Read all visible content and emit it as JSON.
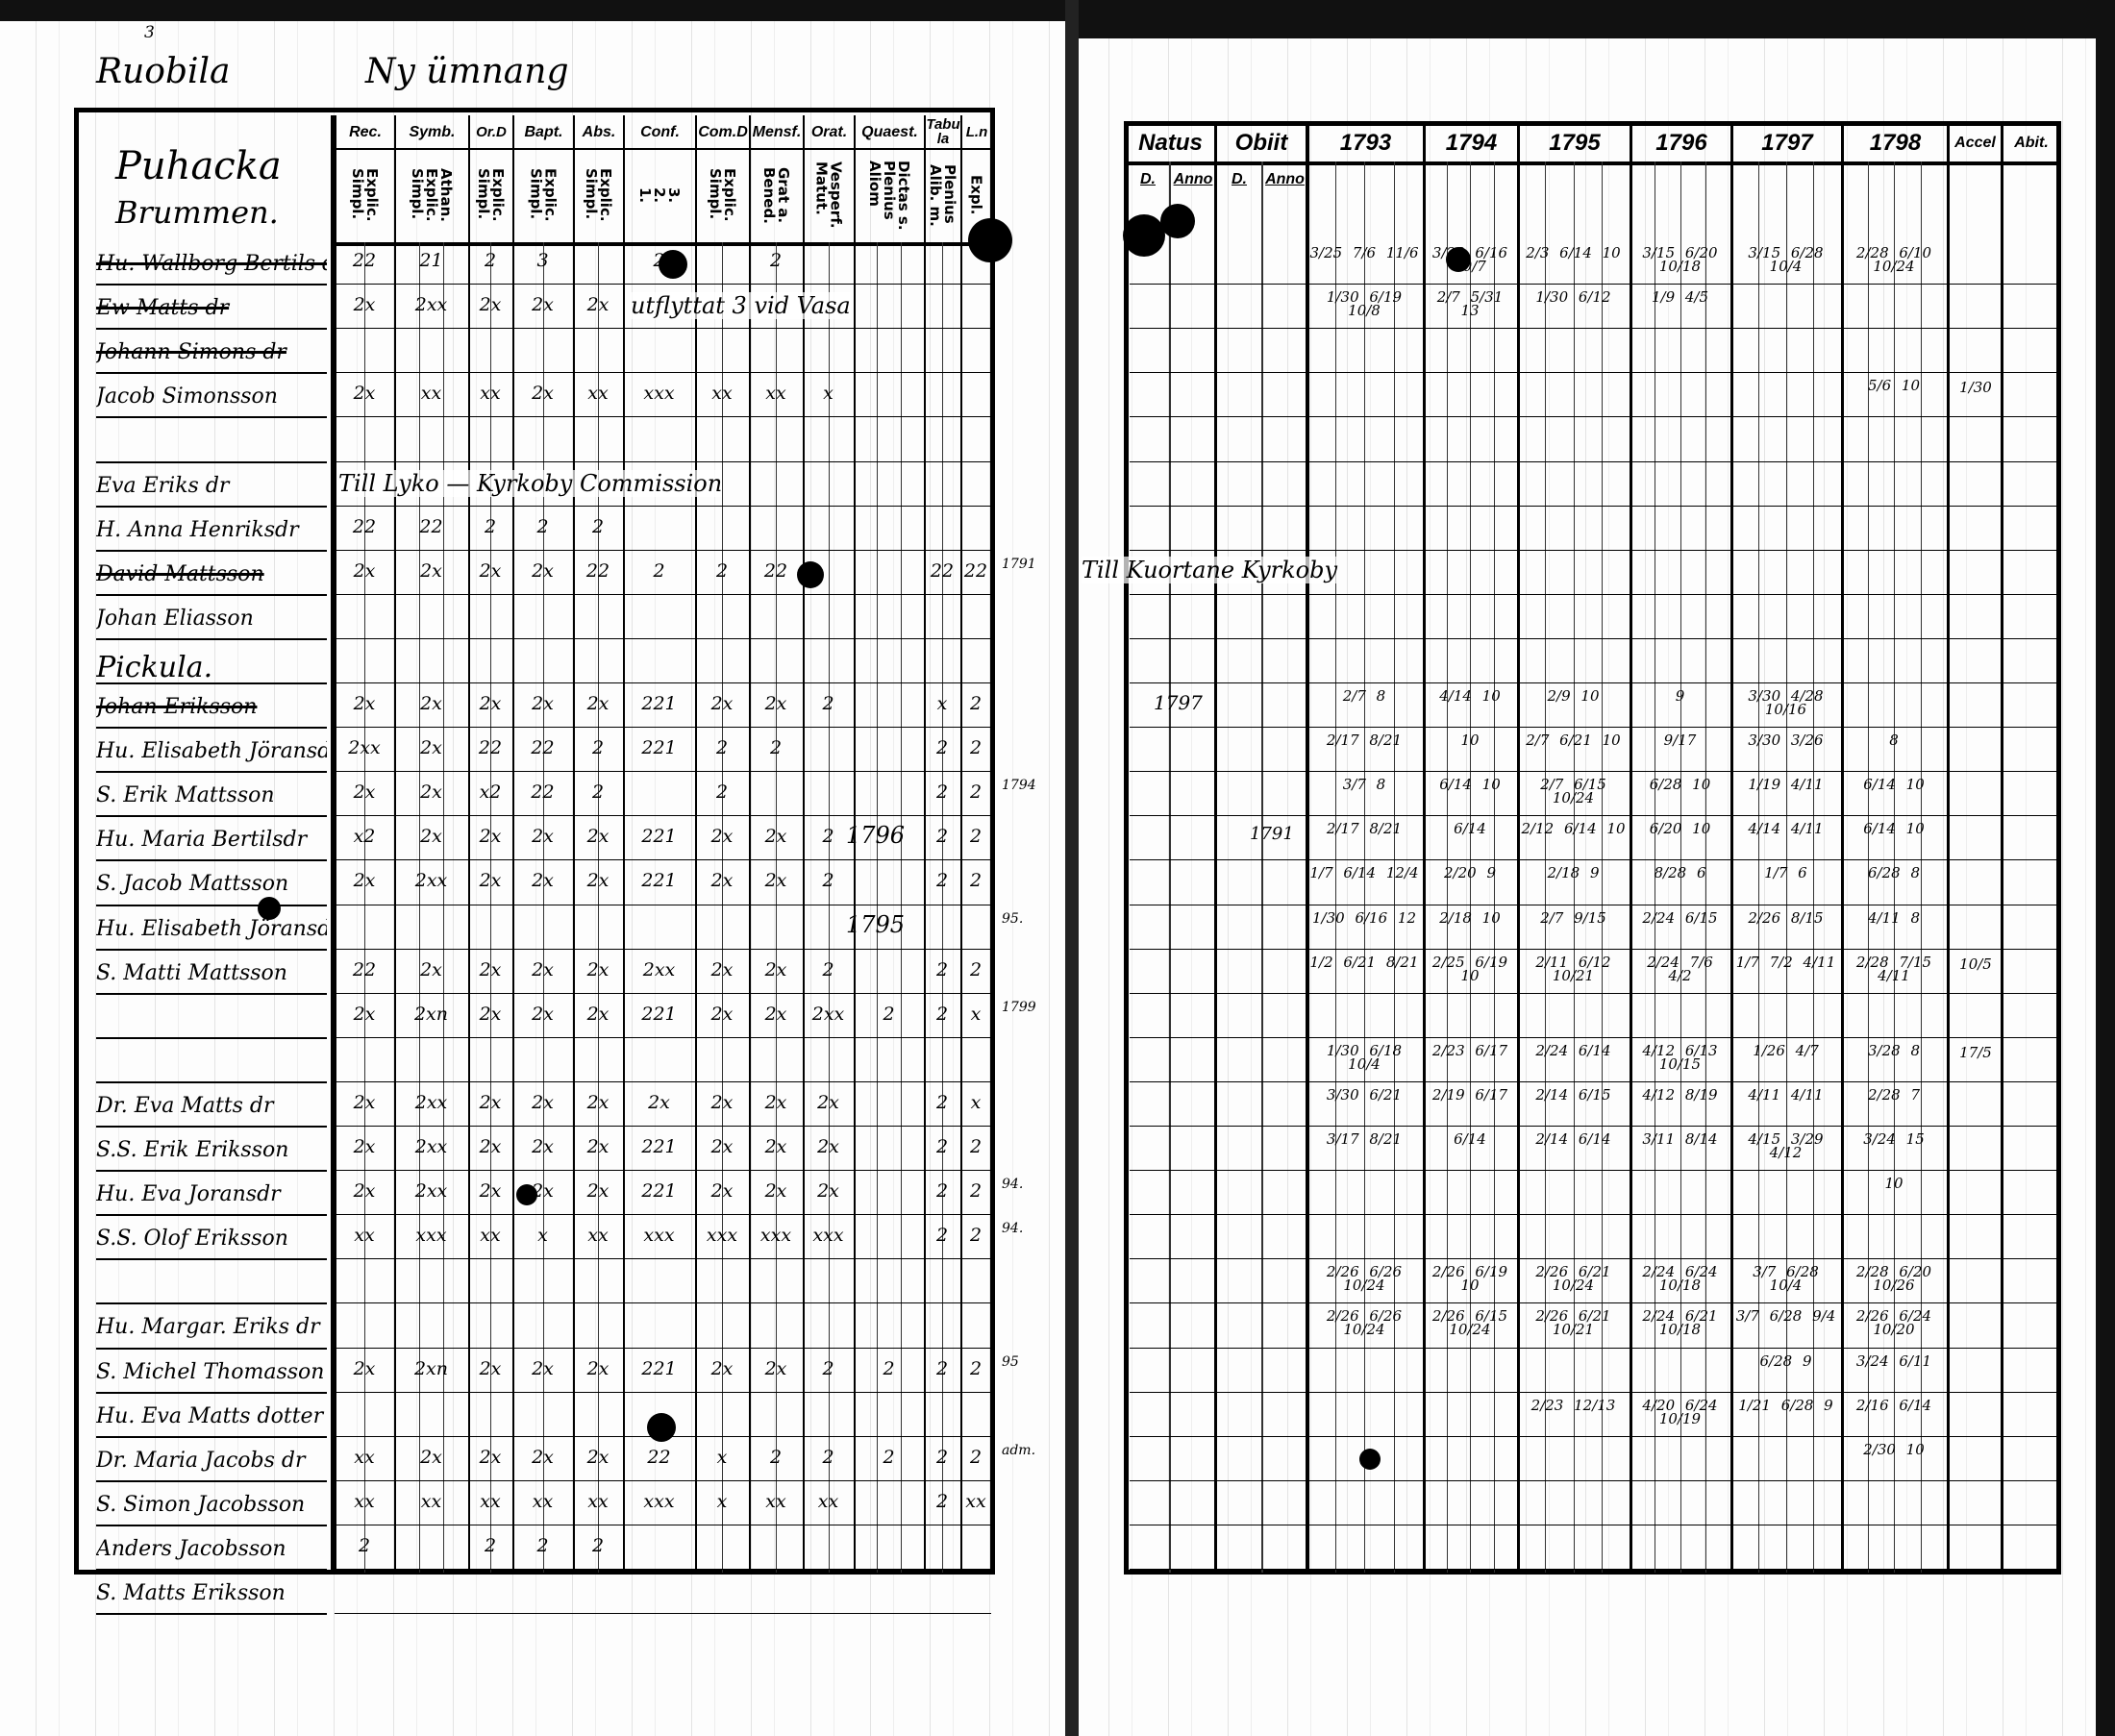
{
  "page": {
    "page_number": "3",
    "village_title": "Ruobila",
    "heading": "Ny ümnang",
    "section_1": "Puhacka",
    "section_1_sub": "Brummen."
  },
  "left_table": {
    "groups": [
      {
        "label": "Rec.",
        "sub": "Explic.\nSimpl."
      },
      {
        "label": "Symb.",
        "sub": "Athan.\nExplic.\nSimpl."
      },
      {
        "label": "Or.D",
        "sub": "Explic.\nSimpl."
      },
      {
        "label": "Bapt.",
        "sub": "Explic.\nSimpl."
      },
      {
        "label": "Abs.",
        "sub": "Explic.\nSimpl."
      },
      {
        "label": "Conf.",
        "sub": "3.\n2.\n1."
      },
      {
        "label": "Com.D",
        "sub": "Explic.\nSimpl."
      },
      {
        "label": "Mensf.",
        "sub": "Grat a.\nBened."
      },
      {
        "label": "Orat.",
        "sub": "Vesperf.\nMatut."
      },
      {
        "label": "Quaest.",
        "sub": "Dictas s.\nPlenius\nAliom"
      },
      {
        "label": "Tabula",
        "sub": "Plenius\nAlib. m."
      },
      {
        "label": "L.n",
        "sub": "Expl."
      }
    ],
    "rows": [
      {
        "name": "Hu. Wallborg Bertils dr",
        "struck": true,
        "marks": [
          "22",
          "21",
          "2",
          "3",
          "",
          "2",
          "",
          "2",
          "",
          "",
          "",
          ""
        ]
      },
      {
        "name": "Ew Matts dr",
        "struck": true,
        "marks": [
          "2x",
          "2xx",
          "2x",
          "2x",
          "2x",
          "",
          "",
          "",
          "",
          "",
          "",
          ""
        ],
        "annotation": "utflyttat 3 vid Vasa"
      },
      {
        "name": "Johann Simons dr",
        "struck": true,
        "marks": []
      },
      {
        "name": "Jacob Simonsson",
        "struck": false,
        "marks": [
          "2x",
          "xx",
          "xx",
          "2x",
          "xx",
          "xxx",
          "xx",
          "xx",
          "x",
          "",
          "",
          ""
        ]
      },
      {
        "name": "",
        "marks": []
      },
      {
        "name": "Eva Eriks dr",
        "struck": false,
        "marks": [],
        "annotation": "Till Lyko — Kyrkoby Commission"
      },
      {
        "name": "H. Anna Henriksdr",
        "struck": false,
        "marks": [
          "22",
          "22",
          "2",
          "2",
          "2",
          "",
          "",
          "",
          "",
          "",
          "",
          ""
        ]
      },
      {
        "name": "David Mattsson",
        "struck": true,
        "marks": [
          "2x",
          "2x",
          "2x",
          "2x",
          "22",
          "2",
          "2",
          "22",
          "",
          "",
          "22",
          "22"
        ],
        "margin": "1791"
      },
      {
        "name": "Johan Eliasson",
        "struck": false,
        "marks": []
      },
      {
        "name": "Pickula.",
        "struck": false,
        "marks": []
      },
      {
        "name": "Johan Eriksson",
        "struck": true,
        "marks": [
          "2x",
          "2x",
          "2x",
          "2x",
          "2x",
          "221",
          "2x",
          "2x",
          "2",
          "",
          "x",
          "2"
        ]
      },
      {
        "name": "Hu. Elisabeth Jöransdr",
        "struck": false,
        "marks": [
          "2xx",
          "2x",
          "22",
          "22",
          "2",
          "221",
          "2",
          "2",
          "",
          "",
          "2",
          "2"
        ]
      },
      {
        "name": "S. Erik Mattsson",
        "struck": false,
        "marks": [
          "2x",
          "2x",
          "x2",
          "22",
          "2",
          "",
          "2",
          "",
          "",
          "",
          "2",
          "2"
        ],
        "margin": "1794"
      },
      {
        "name": "Hu. Maria Bertilsdr",
        "struck": false,
        "marks": [
          "x2",
          "2x",
          "2x",
          "2x",
          "2x",
          "221",
          "2x",
          "2x",
          "2",
          "",
          "2",
          "2"
        ],
        "quaest_note": "1796"
      },
      {
        "name": "S. Jacob Mattsson",
        "struck": false,
        "marks": [
          "2x",
          "2xx",
          "2x",
          "2x",
          "2x",
          "221",
          "2x",
          "2x",
          "2",
          "",
          "2",
          "2"
        ]
      },
      {
        "name": "Hu. Elisabeth Jöransdr",
        "struck": false,
        "marks": [],
        "quaest_note": "1795",
        "margin": "95."
      },
      {
        "name": "S. Matti Mattsson",
        "struck": false,
        "marks": [
          "22",
          "2x",
          "2x",
          "2x",
          "2x",
          "2xx",
          "2x",
          "2x",
          "2",
          "",
          "2",
          "2"
        ]
      },
      {
        "name": "",
        "marks": [
          "2x",
          "2xn",
          "2x",
          "2x",
          "2x",
          "221",
          "2x",
          "2x",
          "2xx",
          "2",
          "2",
          "x"
        ],
        "margin": "1799"
      },
      {
        "name": "",
        "marks": []
      },
      {
        "name": "Dr. Eva Matts dr",
        "struck": false,
        "marks": [
          "2x",
          "2xx",
          "2x",
          "2x",
          "2x",
          "2x",
          "2x",
          "2x",
          "2x",
          "",
          "2",
          "x"
        ]
      },
      {
        "name": "S.S. Erik Eriksson",
        "struck": false,
        "marks": [
          "2x",
          "2xx",
          "2x",
          "2x",
          "2x",
          "221",
          "2x",
          "2x",
          "2x",
          "",
          "2",
          "2"
        ]
      },
      {
        "name": "Hu. Eva Joransdr",
        "struck": false,
        "marks": [
          "2x",
          "2xx",
          "2x",
          "2x",
          "2x",
          "221",
          "2x",
          "2x",
          "2x",
          "",
          "2",
          "2"
        ],
        "margin": "94."
      },
      {
        "name": "S.S. Olof Eriksson",
        "struck": false,
        "marks": [
          "xx",
          "xxx",
          "xx",
          "x",
          "xx",
          "xxx",
          "xxx",
          "xxx",
          "xxx",
          "",
          "2",
          "2"
        ],
        "margin": "94."
      },
      {
        "name": "",
        "marks": []
      },
      {
        "name": "Hu. Margar. Eriks dr",
        "struck": false,
        "marks": []
      },
      {
        "name": "S. Michel Thomasson",
        "struck": false,
        "marks": [
          "2x",
          "2xn",
          "2x",
          "2x",
          "2x",
          "221",
          "2x",
          "2x",
          "2",
          "2",
          "2",
          "2"
        ],
        "margin": "95"
      },
      {
        "name": "Hu. Eva Matts dotter",
        "struck": false,
        "marks": []
      },
      {
        "name": "Dr. Maria Jacobs dr",
        "struck": false,
        "marks": [
          "xx",
          "2x",
          "2x",
          "2x",
          "2x",
          "22",
          "x",
          "2",
          "2",
          "2",
          "2",
          "2"
        ],
        "margin": "adm."
      },
      {
        "name": "S. Simon Jacobsson",
        "struck": false,
        "marks": [
          "xx",
          "xx",
          "xx",
          "xx",
          "xx",
          "xxx",
          "x",
          "xx",
          "xx",
          "",
          "2",
          "xx"
        ]
      },
      {
        "name": "Anders Jacobsson",
        "struck": false,
        "marks": [
          "2",
          "",
          "2",
          "2",
          "2",
          "",
          "",
          "",
          "",
          "",
          "",
          ""
        ]
      },
      {
        "name": "S. Matts Eriksson",
        "struck": false,
        "marks": []
      }
    ]
  },
  "right_table": {
    "headers": {
      "natus": "Natus",
      "obiit": "Obiit",
      "years": [
        "1793",
        "1794",
        "1795",
        "1796",
        "1797",
        "1798"
      ],
      "accel": "Accel",
      "abit": "Abit.",
      "day": "D.",
      "anno": "Anno"
    },
    "annotation_row_7": "Till Kuortane Kyrkoby",
    "rows": [
      {
        "years": [
          "3/25 7/6 11/6",
          "3/23 6/16 10/7",
          "2/3 6/14 10",
          "3/15 6/20 10/18",
          "3/15 6/28 10/4",
          "2/28 6/10 10/24"
        ]
      },
      {
        "years": [
          "1/30 6/19 10/8",
          "2/7 5/31 13",
          "1/30 6/12",
          "1/9 4/5",
          "",
          ""
        ]
      },
      {
        "years": [
          "",
          "",
          "",
          "",
          "",
          ""
        ]
      },
      {
        "years": [
          "",
          "",
          "",
          "",
          "",
          "5/6 10"
        ],
        "accel": "1/30"
      },
      {
        "years": []
      },
      {
        "years": []
      },
      {
        "years": []
      },
      {
        "years": []
      },
      {
        "years": []
      },
      {
        "years": []
      },
      {
        "natus_anno": "1797",
        "years": [
          "2/7 8",
          "4/14 10",
          "2/9 10",
          "9",
          "3/30 4/28 10/16",
          ""
        ]
      },
      {
        "years": [
          "2/17 8/21",
          "10",
          "2/7 6/21 10",
          "9/17",
          "3/30 3/26",
          "8"
        ]
      },
      {
        "years": [
          "3/7 8",
          "6/14 10",
          "2/7 6/15 10/24",
          "6/28 10",
          "1/19 4/11",
          "6/14 10"
        ]
      },
      {
        "obiit_anno": "1791",
        "years": [
          "2/17 8/21",
          "6/14",
          "2/12 6/14 10",
          "6/20 10",
          "4/14 4/11",
          "6/14 10"
        ]
      },
      {
        "years": [
          "1/7 6/14 12/4",
          "2/20 9",
          "2/18 9",
          "8/28 6",
          "1/7 6",
          "6/28 8"
        ]
      },
      {
        "years": [
          "1/30 6/16 12",
          "2/18 10",
          "2/7 9/15",
          "2/24 6/15",
          "2/26 8/15",
          "4/11 8"
        ]
      },
      {
        "years": [
          "1/2 6/21 8/21",
          "2/25 6/19 10",
          "2/11 6/12 10/21",
          "2/24 7/6 4/2",
          "1/7 7/2 4/11",
          "2/28 7/15 4/11"
        ],
        "accel": "10/5"
      },
      {
        "years": []
      },
      {
        "years": [
          "1/30 6/18 10/4",
          "2/23 6/17",
          "2/24 6/14",
          "4/12 6/13 10/15",
          "1/26 4/7",
          "3/28 8"
        ],
        "accel": "17/5"
      },
      {
        "years": [
          "3/30 6/21",
          "2/19 6/17",
          "2/14 6/15",
          "4/12 8/19",
          "4/11 4/11",
          "2/28 7"
        ]
      },
      {
        "years": [
          "3/17 8/21",
          "6/14",
          "2/14 6/14",
          "3/11 8/14",
          "4/15 3/29 4/12",
          "3/24 15"
        ]
      },
      {
        "years": [
          "",
          "",
          "",
          "",
          "",
          "10"
        ]
      },
      {
        "years": []
      },
      {
        "years": [
          "2/26 6/26 10/24",
          "2/26 6/19 10",
          "2/26 6/21 10/24",
          "2/24 6/24 10/18",
          "3/7 6/28 10/4",
          "2/28 6/20 10/26"
        ]
      },
      {
        "years": [
          "2/26 6/26 10/24",
          "2/26 6/15 10/24",
          "2/26 6/21 10/21",
          "2/24 6/21 10/18",
          "3/7 6/28 9/4",
          "2/26 6/24 10/20"
        ]
      },
      {
        "years": [
          "",
          "",
          "",
          "",
          "6/28 9",
          "3/24 6/11"
        ]
      },
      {
        "years": [
          "",
          "",
          "2/23 12/13",
          "4/20 6/24 10/19",
          "1/21 6/28 9",
          "2/16 6/14"
        ]
      },
      {
        "years": [
          "",
          "",
          "",
          "",
          "",
          "2/30 10"
        ]
      },
      {
        "years": []
      },
      {
        "years": []
      }
    ]
  },
  "colors": {
    "ink": "#000000",
    "paper": "#fdfdfd"
  }
}
